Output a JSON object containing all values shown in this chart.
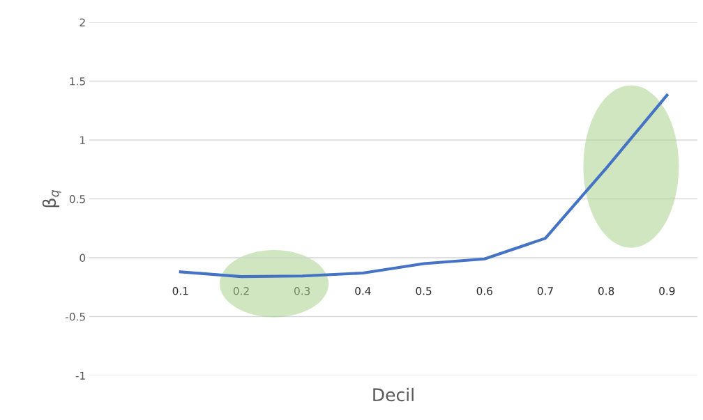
{
  "chart_data": {
    "type": "line",
    "xlabel": "Decil",
    "ylabel": "β$_{q}$",
    "categories": [
      null,
      "0.1",
      "0.2",
      "0.3",
      "0.4",
      "0.5",
      "0.6",
      "0.7",
      "0.8",
      "0.9"
    ],
    "series": [
      {
        "color": "#4472c4",
        "values": [
          null,
          -0.12,
          -0.16,
          -0.155,
          -0.13,
          -0.05,
          -0.01,
          0.165,
          0.76,
          1.38
        ]
      }
    ],
    "ylim": [
      -1,
      2
    ],
    "yticks": [
      -1,
      -0.5,
      0,
      0.5,
      1,
      1.5,
      2
    ],
    "grid": "y",
    "marker": "none",
    "line_style": "solid"
  }
}
